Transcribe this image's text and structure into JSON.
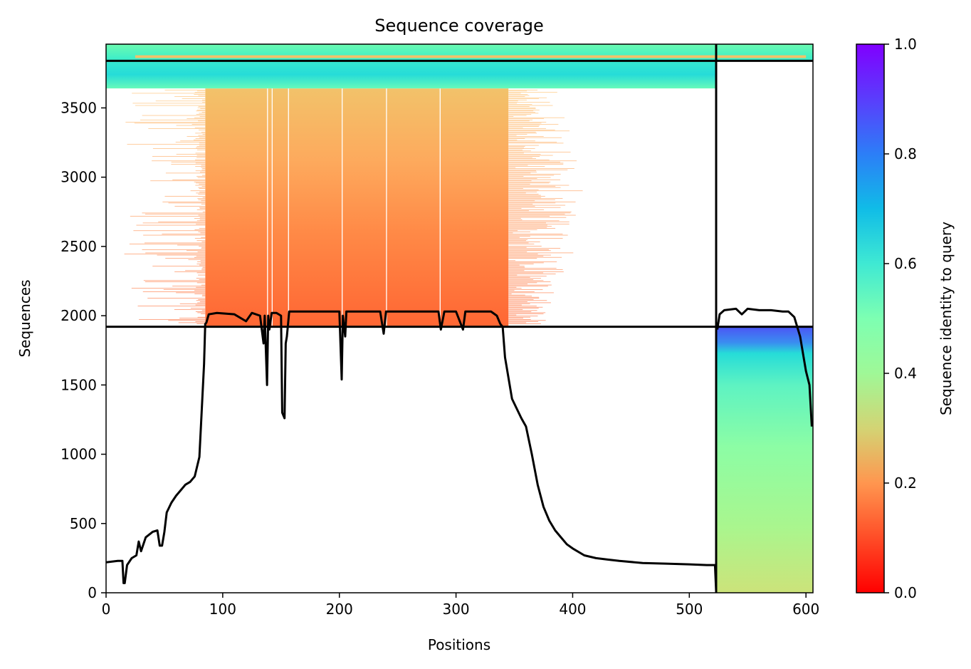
{
  "chart_data": {
    "type": "heatmap",
    "title": "Sequence coverage",
    "xlabel": "Positions",
    "ylabel": "Sequences",
    "xlim": [
      0,
      606
    ],
    "ylim": [
      0,
      3960
    ],
    "xticks": [
      "0",
      "100",
      "200",
      "300",
      "400",
      "500",
      "600"
    ],
    "xtick_values": [
      0,
      100,
      200,
      300,
      400,
      500,
      600
    ],
    "yticks": [
      "0",
      "500",
      "1000",
      "1500",
      "2000",
      "2500",
      "3000",
      "3500"
    ],
    "ytick_values": [
      0,
      500,
      1000,
      1500,
      2000,
      2500,
      3000,
      3500
    ],
    "colorbar": {
      "label": "Sequence identity to query",
      "colormap": "rainbow_r",
      "range": [
        0,
        1
      ],
      "ticks": [
        "0.0",
        "0.2",
        "0.4",
        "0.6",
        "0.8",
        "1.0"
      ],
      "tick_values": [
        0,
        0.2,
        0.4,
        0.6,
        0.8,
        1.0
      ]
    },
    "chain_boundary_x": 523,
    "row_group_boundaries_y": [
      1920,
      3840
    ],
    "blocks": [
      {
        "x_range": [
          0,
          523
        ],
        "y_range": [
          3840,
          3960
        ],
        "identity": [
          0.62,
          0.68
        ]
      },
      {
        "x_range": [
          523,
          606
        ],
        "y_range": [
          3840,
          3960
        ],
        "identity": [
          0.62,
          0.68
        ]
      },
      {
        "x_range": [
          0,
          523
        ],
        "y_range": [
          3640,
          3840
        ],
        "identity": [
          0.58,
          0.7
        ]
      },
      {
        "x_range": [
          85,
          345
        ],
        "y_range": [
          1920,
          3640
        ],
        "identity": [
          0.1,
          0.26
        ]
      },
      {
        "x_range": [
          523,
          606
        ],
        "y_range": [
          0,
          1920
        ],
        "identity": [
          0.32,
          0.9
        ]
      }
    ],
    "coverage_line": {
      "name": "coverage",
      "color": "#000000",
      "x": [
        0,
        10,
        14,
        15,
        16,
        18,
        22,
        26,
        28,
        30,
        34,
        40,
        44,
        46,
        48,
        50,
        52,
        56,
        60,
        64,
        68,
        72,
        76,
        80,
        84,
        85,
        86,
        88,
        95,
        110,
        120,
        125,
        132,
        135,
        136,
        138,
        139,
        140,
        142,
        146,
        150,
        151,
        153,
        154,
        155,
        157,
        160,
        175,
        185,
        195,
        200,
        202,
        203,
        205,
        206,
        210,
        225,
        235,
        238,
        240,
        245,
        260,
        280,
        285,
        287,
        290,
        300,
        306,
        308,
        312,
        320,
        330,
        335,
        338,
        340,
        342,
        345,
        348,
        352,
        356,
        360,
        365,
        370,
        375,
        380,
        385,
        390,
        395,
        400,
        410,
        420,
        430,
        440,
        460,
        480,
        500,
        515,
        520,
        522,
        523,
        524,
        526,
        530,
        540,
        545,
        550,
        560,
        570,
        580,
        585,
        590,
        595,
        598,
        600,
        603,
        605
      ],
      "y": [
        220,
        230,
        230,
        70,
        70,
        200,
        250,
        270,
        370,
        300,
        400,
        440,
        450,
        340,
        340,
        440,
        580,
        650,
        700,
        740,
        780,
        800,
        840,
        980,
        1650,
        1940,
        1950,
        2010,
        2020,
        2010,
        1960,
        2020,
        2000,
        1800,
        2000,
        1500,
        2000,
        1900,
        2020,
        2020,
        2000,
        1300,
        1260,
        1800,
        1850,
        2030,
        2030,
        2030,
        2030,
        2030,
        2030,
        1540,
        2000,
        1850,
        2030,
        2030,
        2030,
        2030,
        1870,
        2030,
        2030,
        2030,
        2030,
        2030,
        1900,
        2030,
        2030,
        1900,
        2030,
        2030,
        2030,
        2030,
        2000,
        1940,
        1920,
        1700,
        1550,
        1400,
        1330,
        1260,
        1200,
        1000,
        780,
        620,
        520,
        450,
        400,
        350,
        320,
        270,
        250,
        240,
        230,
        215,
        210,
        205,
        200,
        200,
        200,
        10,
        1900,
        2010,
        2040,
        2050,
        2010,
        2050,
        2040,
        2040,
        2030,
        2030,
        1990,
        1850,
        1700,
        1600,
        1500,
        1200
      ]
    }
  }
}
